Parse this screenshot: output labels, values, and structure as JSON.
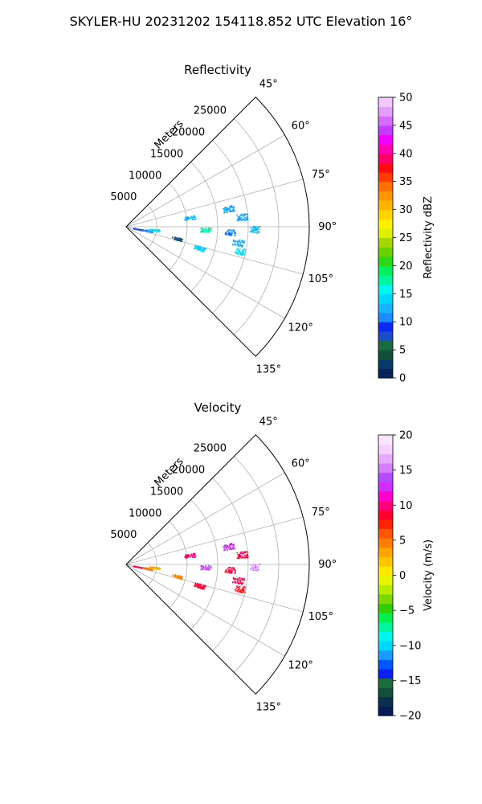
{
  "figure": {
    "suptitle": "SKYLER-HU  20231202  154118.852 UTC Elevation 16°"
  },
  "chart_data": [
    {
      "type": "scatter",
      "projection": "polar-sector",
      "title": "Reflectivity",
      "theta_range_deg": [
        45,
        135
      ],
      "theta_ticks": [
        "45°",
        "60°",
        "75°",
        "90°",
        "105°",
        "120°",
        "135°"
      ],
      "r_label": "Meters",
      "r_ticks": [
        "5000",
        "10000",
        "15000",
        "20000",
        "25000"
      ],
      "r_max": 30000,
      "grid": true,
      "colorbar": {
        "label": "Reflectivity dBZ",
        "range": [
          0,
          50
        ],
        "ticks": [
          "0",
          "5",
          "10",
          "15",
          "20",
          "25",
          "30",
          "35",
          "40",
          "45",
          "50"
        ],
        "colormap": "pyart_HomeyerRainbow"
      },
      "echo_clusters": [
        {
          "azimuth_deg": 101,
          "range_m": 2000,
          "value": 9
        },
        {
          "azimuth_deg": 100,
          "range_m": 3500,
          "value": 11
        },
        {
          "azimuth_deg": 96,
          "range_m": 4600,
          "value": 15
        },
        {
          "azimuth_deg": 103,
          "range_m": 8500,
          "value": 6
        },
        {
          "azimuth_deg": 106,
          "range_m": 12500,
          "value": 14
        },
        {
          "azimuth_deg": 92,
          "range_m": 13000,
          "value": 17
        },
        {
          "azimuth_deg": 93,
          "range_m": 17000,
          "value": 11
        },
        {
          "azimuth_deg": 98,
          "range_m": 18500,
          "value": 12
        },
        {
          "azimuth_deg": 102,
          "range_m": 19000,
          "value": 15
        },
        {
          "azimuth_deg": 91,
          "range_m": 21000,
          "value": 13
        },
        {
          "azimuth_deg": 85,
          "range_m": 19000,
          "value": 12
        },
        {
          "azimuth_deg": 80,
          "range_m": 17000,
          "value": 12
        },
        {
          "azimuth_deg": 82,
          "range_m": 10500,
          "value": 13
        }
      ]
    },
    {
      "type": "scatter",
      "projection": "polar-sector",
      "title": "Velocity",
      "theta_range_deg": [
        45,
        135
      ],
      "theta_ticks": [
        "45°",
        "60°",
        "75°",
        "90°",
        "105°",
        "120°",
        "135°"
      ],
      "r_label": "Meters",
      "r_ticks": [
        "5000",
        "10000",
        "15000",
        "20000",
        "25000"
      ],
      "r_max": 30000,
      "grid": true,
      "colorbar": {
        "label": "Velocity (m/s)",
        "range": [
          -20,
          20
        ],
        "ticks": [
          "−20",
          "−15",
          "−10",
          "−5",
          "0",
          "5",
          "10",
          "15",
          "20"
        ],
        "colormap": "pyart_BuDRd18"
      },
      "echo_clusters": [
        {
          "azimuth_deg": 101,
          "range_m": 2000,
          "value": 9
        },
        {
          "azimuth_deg": 100,
          "range_m": 3500,
          "value": 5
        },
        {
          "azimuth_deg": 96,
          "range_m": 4600,
          "value": 3
        },
        {
          "azimuth_deg": 103,
          "range_m": 8500,
          "value": 4
        },
        {
          "azimuth_deg": 106,
          "range_m": 12500,
          "value": 9
        },
        {
          "azimuth_deg": 92,
          "range_m": 13000,
          "value": 14
        },
        {
          "azimuth_deg": 93,
          "range_m": 17000,
          "value": 9
        },
        {
          "azimuth_deg": 98,
          "range_m": 18500,
          "value": 9
        },
        {
          "azimuth_deg": 102,
          "range_m": 19000,
          "value": 8
        },
        {
          "azimuth_deg": 91,
          "range_m": 21000,
          "value": 16
        },
        {
          "azimuth_deg": 85,
          "range_m": 19000,
          "value": 9
        },
        {
          "azimuth_deg": 80,
          "range_m": 17000,
          "value": 13
        },
        {
          "azimuth_deg": 82,
          "range_m": 10500,
          "value": 10
        }
      ]
    }
  ]
}
